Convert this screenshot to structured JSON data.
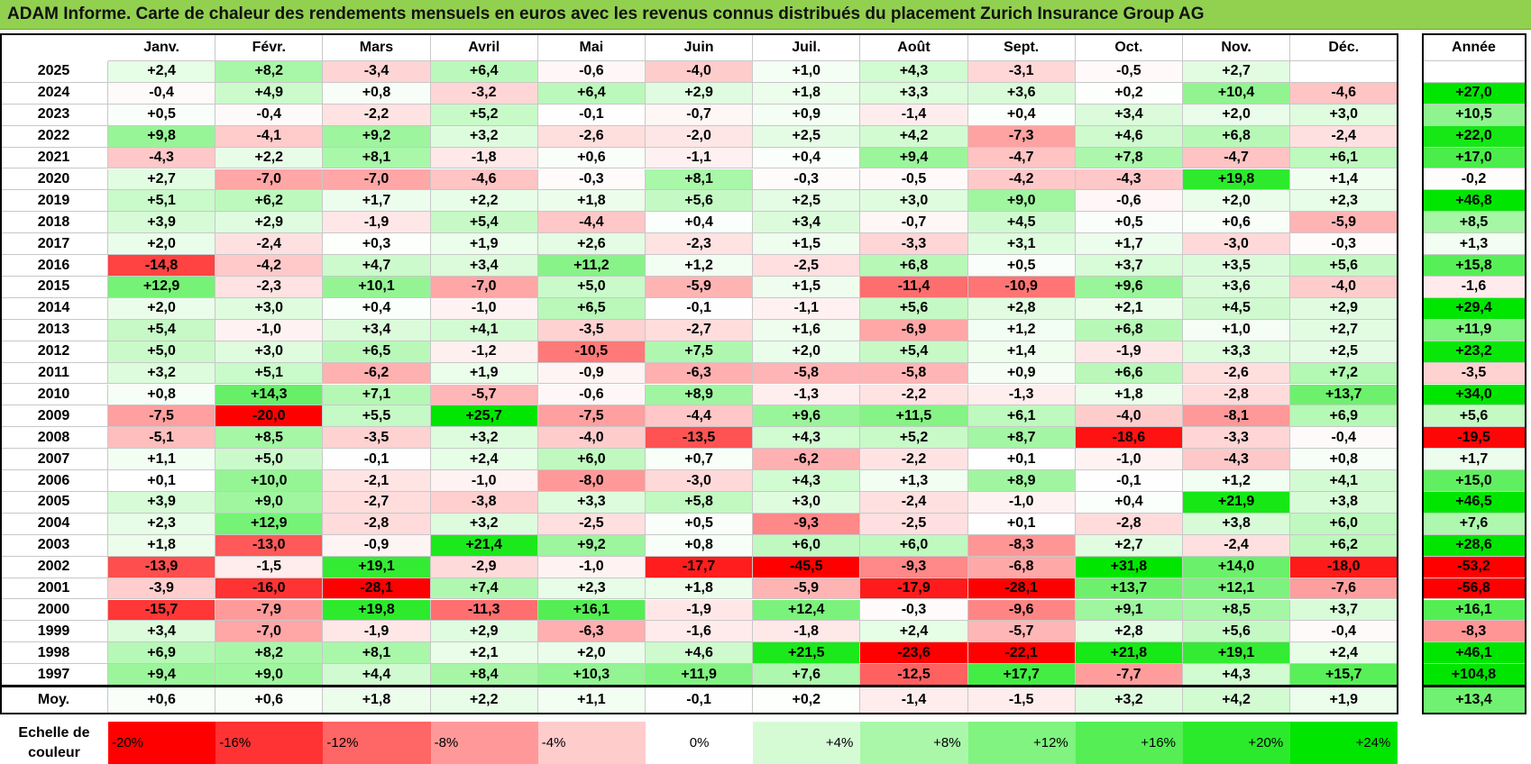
{
  "title": "ADAM Informe. Carte de chaleur des rendements mensuels en euros avec les revenus connus distribués du placement Zurich Insurance Group AG",
  "chart_data": {
    "type": "heatmap",
    "title": "ADAM Informe. Carte de chaleur des rendements mensuels en euros avec les revenus connus distribués du placement Zurich Insurance Group AG",
    "columns": [
      "Janv.",
      "Févr.",
      "Mars",
      "Avril",
      "Mai",
      "Juin",
      "Juil.",
      "Août",
      "Sept.",
      "Oct.",
      "Nov.",
      "Déc."
    ],
    "year_column": "Année",
    "rows": [
      {
        "year": "2025",
        "months": [
          "+2,4",
          "+8,2",
          "-3,4",
          "+6,4",
          "-0,6",
          "-4,0",
          "+1,0",
          "+4,3",
          "-3,1",
          "-0,5",
          "+2,7",
          ""
        ],
        "annual": ""
      },
      {
        "year": "2024",
        "months": [
          "-0,4",
          "+4,9",
          "+0,8",
          "-3,2",
          "+6,4",
          "+2,9",
          "+1,8",
          "+3,3",
          "+3,6",
          "+0,2",
          "+10,4",
          "-4,6"
        ],
        "annual": "+27,0"
      },
      {
        "year": "2023",
        "months": [
          "+0,5",
          "-0,4",
          "-2,2",
          "+5,2",
          "-0,1",
          "-0,7",
          "+0,9",
          "-1,4",
          "+0,4",
          "+3,4",
          "+2,0",
          "+3,0"
        ],
        "annual": "+10,5"
      },
      {
        "year": "2022",
        "months": [
          "+9,8",
          "-4,1",
          "+9,2",
          "+3,2",
          "-2,6",
          "-2,0",
          "+2,5",
          "+4,2",
          "-7,3",
          "+4,6",
          "+6,8",
          "-2,4"
        ],
        "annual": "+22,0"
      },
      {
        "year": "2021",
        "months": [
          "-4,3",
          "+2,2",
          "+8,1",
          "-1,8",
          "+0,6",
          "-1,1",
          "+0,4",
          "+9,4",
          "-4,7",
          "+7,8",
          "-4,7",
          "+6,1"
        ],
        "annual": "+17,0"
      },
      {
        "year": "2020",
        "months": [
          "+2,7",
          "-7,0",
          "-7,0",
          "-4,6",
          "-0,3",
          "+8,1",
          "-0,3",
          "-0,5",
          "-4,2",
          "-4,3",
          "+19,8",
          "+1,4"
        ],
        "annual": "-0,2"
      },
      {
        "year": "2019",
        "months": [
          "+5,1",
          "+6,2",
          "+1,7",
          "+2,2",
          "+1,8",
          "+5,6",
          "+2,5",
          "+3,0",
          "+9,0",
          "-0,6",
          "+2,0",
          "+2,3"
        ],
        "annual": "+46,8"
      },
      {
        "year": "2018",
        "months": [
          "+3,9",
          "+2,9",
          "-1,9",
          "+5,4",
          "-4,4",
          "+0,4",
          "+3,4",
          "-0,7",
          "+4,5",
          "+0,5",
          "+0,6",
          "-5,9"
        ],
        "annual": "+8,5"
      },
      {
        "year": "2017",
        "months": [
          "+2,0",
          "-2,4",
          "+0,3",
          "+1,9",
          "+2,6",
          "-2,3",
          "+1,5",
          "-3,3",
          "+3,1",
          "+1,7",
          "-3,0",
          "-0,3"
        ],
        "annual": "+1,3"
      },
      {
        "year": "2016",
        "months": [
          "-14,8",
          "-4,2",
          "+4,7",
          "+3,4",
          "+11,2",
          "+1,2",
          "-2,5",
          "+6,8",
          "+0,5",
          "+3,7",
          "+3,5",
          "+5,6"
        ],
        "annual": "+15,8"
      },
      {
        "year": "2015",
        "months": [
          "+12,9",
          "-2,3",
          "+10,1",
          "-7,0",
          "+5,0",
          "-5,9",
          "+1,5",
          "-11,4",
          "-10,9",
          "+9,6",
          "+3,6",
          "-4,0"
        ],
        "annual": "-1,6"
      },
      {
        "year": "2014",
        "months": [
          "+2,0",
          "+3,0",
          "+0,4",
          "-1,0",
          "+6,5",
          "-0,1",
          "-1,1",
          "+5,6",
          "+2,8",
          "+2,1",
          "+4,5",
          "+2,9"
        ],
        "annual": "+29,4"
      },
      {
        "year": "2013",
        "months": [
          "+5,4",
          "-1,0",
          "+3,4",
          "+4,1",
          "-3,5",
          "-2,7",
          "+1,6",
          "-6,9",
          "+1,2",
          "+6,8",
          "+1,0",
          "+2,7"
        ],
        "annual": "+11,9"
      },
      {
        "year": "2012",
        "months": [
          "+5,0",
          "+3,0",
          "+6,5",
          "-1,2",
          "-10,5",
          "+7,5",
          "+2,0",
          "+5,4",
          "+1,4",
          "-1,9",
          "+3,3",
          "+2,5"
        ],
        "annual": "+23,2"
      },
      {
        "year": "2011",
        "months": [
          "+3,2",
          "+5,1",
          "-6,2",
          "+1,9",
          "-0,9",
          "-6,3",
          "-5,8",
          "-5,8",
          "+0,9",
          "+6,6",
          "-2,6",
          "+7,2"
        ],
        "annual": "-3,5"
      },
      {
        "year": "2010",
        "months": [
          "+0,8",
          "+14,3",
          "+7,1",
          "-5,7",
          "-0,6",
          "+8,9",
          "-1,3",
          "-2,2",
          "-1,3",
          "+1,8",
          "-2,8",
          "+13,7"
        ],
        "annual": "+34,0"
      },
      {
        "year": "2009",
        "months": [
          "-7,5",
          "-20,0",
          "+5,5",
          "+25,7",
          "-7,5",
          "-4,4",
          "+9,6",
          "+11,5",
          "+6,1",
          "-4,0",
          "-8,1",
          "+6,9"
        ],
        "annual": "+5,6"
      },
      {
        "year": "2008",
        "months": [
          "-5,1",
          "+8,5",
          "-3,5",
          "+3,2",
          "-4,0",
          "-13,5",
          "+4,3",
          "+5,2",
          "+8,7",
          "-18,6",
          "-3,3",
          "-0,4"
        ],
        "annual": "-19,5"
      },
      {
        "year": "2007",
        "months": [
          "+1,1",
          "+5,0",
          "-0,1",
          "+2,4",
          "+6,0",
          "+0,7",
          "-6,2",
          "-2,2",
          "+0,1",
          "-1,0",
          "-4,3",
          "+0,8"
        ],
        "annual": "+1,7"
      },
      {
        "year": "2006",
        "months": [
          "+0,1",
          "+10,0",
          "-2,1",
          "-1,0",
          "-8,0",
          "-3,0",
          "+4,3",
          "+1,3",
          "+8,9",
          "-0,1",
          "+1,2",
          "+4,1"
        ],
        "annual": "+15,0"
      },
      {
        "year": "2005",
        "months": [
          "+3,9",
          "+9,0",
          "-2,7",
          "-3,8",
          "+3,3",
          "+5,8",
          "+3,0",
          "-2,4",
          "-1,0",
          "+0,4",
          "+21,9",
          "+3,8"
        ],
        "annual": "+46,5"
      },
      {
        "year": "2004",
        "months": [
          "+2,3",
          "+12,9",
          "-2,8",
          "+3,2",
          "-2,5",
          "+0,5",
          "-9,3",
          "-2,5",
          "+0,1",
          "-2,8",
          "+3,8",
          "+6,0"
        ],
        "annual": "+7,6"
      },
      {
        "year": "2003",
        "months": [
          "+1,8",
          "-13,0",
          "-0,9",
          "+21,4",
          "+9,2",
          "+0,8",
          "+6,0",
          "+6,0",
          "-8,3",
          "+2,7",
          "-2,4",
          "+6,2"
        ],
        "annual": "+28,6"
      },
      {
        "year": "2002",
        "months": [
          "-13,9",
          "-1,5",
          "+19,1",
          "-2,9",
          "-1,0",
          "-17,7",
          "-45,5",
          "-9,3",
          "-6,8",
          "+31,8",
          "+14,0",
          "-18,0"
        ],
        "annual": "-53,2"
      },
      {
        "year": "2001",
        "months": [
          "-3,9",
          "-16,0",
          "-28,1",
          "+7,4",
          "+2,3",
          "+1,8",
          "-5,9",
          "-17,9",
          "-28,1",
          "+13,7",
          "+12,1",
          "-7,6"
        ],
        "annual": "-56,8"
      },
      {
        "year": "2000",
        "months": [
          "-15,7",
          "-7,9",
          "+19,8",
          "-11,3",
          "+16,1",
          "-1,9",
          "+12,4",
          "-0,3",
          "-9,6",
          "+9,1",
          "+8,5",
          "+3,7"
        ],
        "annual": "+16,1"
      },
      {
        "year": "1999",
        "months": [
          "+3,4",
          "-7,0",
          "-1,9",
          "+2,9",
          "-6,3",
          "-1,6",
          "-1,8",
          "+2,4",
          "-5,7",
          "+2,8",
          "+5,6",
          "-0,4"
        ],
        "annual": "-8,3"
      },
      {
        "year": "1998",
        "months": [
          "+6,9",
          "+8,2",
          "+8,1",
          "+2,1",
          "+2,0",
          "+4,6",
          "+21,5",
          "-23,6",
          "-22,1",
          "+21,8",
          "+19,1",
          "+2,4"
        ],
        "annual": "+46,1"
      },
      {
        "year": "1997",
        "months": [
          "+9,4",
          "+9,0",
          "+4,4",
          "+8,4",
          "+10,3",
          "+11,9",
          "+7,6",
          "-12,5",
          "+17,7",
          "-7,7",
          "+4,3",
          "+15,7"
        ],
        "annual": "+104,8"
      }
    ],
    "average_row": {
      "label": "Moy.",
      "months": [
        "+0,6",
        "+0,6",
        "+1,8",
        "+2,2",
        "+1,1",
        "-0,1",
        "+0,2",
        "-1,4",
        "-1,5",
        "+3,2",
        "+4,2",
        "+1,9"
      ],
      "annual": "+13,4"
    },
    "color_scale": {
      "label": "Echelle de couleur",
      "steps": [
        "-20%",
        "-16%",
        "-12%",
        "-8%",
        "-4%",
        "0%",
        "+4%",
        "+8%",
        "+12%",
        "+16%",
        "+20%",
        "+24%"
      ],
      "min_color": "#ff0000",
      "mid_color": "#ffffff",
      "max_color": "#00e600"
    }
  }
}
